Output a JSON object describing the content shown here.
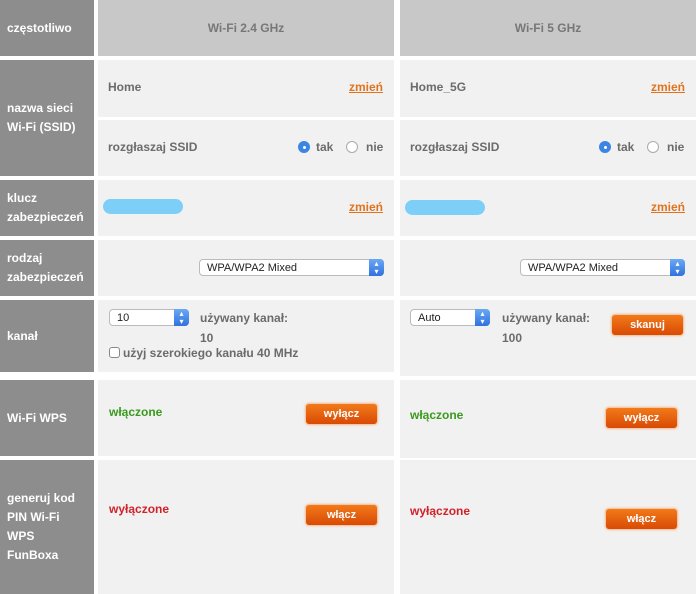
{
  "labels": {
    "frequency": "częstotliwo",
    "ssid": "nazwa sieci Wi-Fi (SSID)",
    "key": "klucz zabezpieczeń",
    "security_type": "rodzaj zabezpieczeń",
    "channel": "kanał",
    "wps": "Wi-Fi WPS",
    "pin": "generuj kod PIN Wi-Fi WPS FunBoxa"
  },
  "change_label": "zmień",
  "broadcast_label": "rozgłaszaj SSID",
  "yes": "tak",
  "no": "nie",
  "used_channel_label": "używany kanał:",
  "bands": [
    {
      "title": "Wi-Fi 2.4 GHz",
      "ssid": "Home",
      "broadcast": "tak",
      "security": "WPA/WPA2 Mixed",
      "channel": "10",
      "used_channel": "10",
      "wide_channel_label": "użyj szerokiego kanału 40 MHz",
      "wide_channel_checked": false,
      "wps_status": "włączone",
      "wps_button": "wyłącz",
      "pin_status": "wyłączone",
      "pin_button": "włącz"
    },
    {
      "title": "Wi-Fi 5 GHz",
      "ssid": "Home_5G",
      "broadcast": "tak",
      "security": "WPA/WPA2 Mixed",
      "channel": "Auto",
      "used_channel": "100",
      "scan_button": "skanuj",
      "wps_status": "włączone",
      "wps_button": "wyłącz",
      "pin_status": "wyłączone",
      "pin_button": "włącz"
    }
  ],
  "colors": {
    "accent": "#e0741e",
    "enabled": "#3a9a1f",
    "disabled": "#d0222a",
    "label_bg": "#8e8d8d"
  }
}
